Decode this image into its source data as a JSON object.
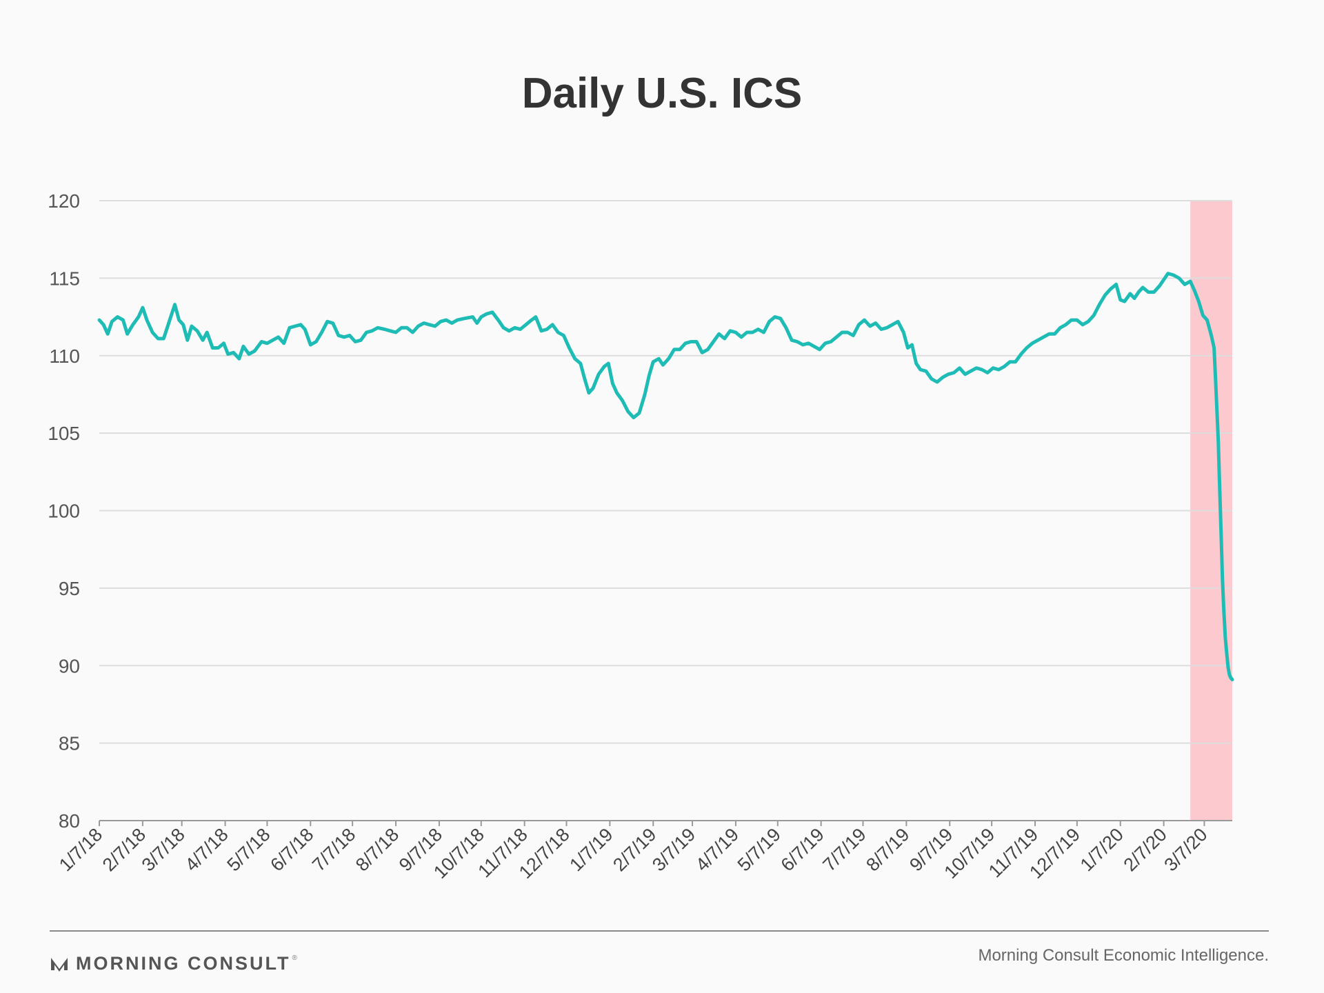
{
  "chart_data": {
    "type": "line",
    "title": "Daily U.S. ICS",
    "xlabel": "",
    "ylabel": "",
    "ylim": [
      80,
      120
    ],
    "yticks": [
      80,
      85,
      90,
      95,
      100,
      105,
      110,
      115,
      120
    ],
    "grid": true,
    "x_start": "2018-01-07",
    "x_end": "2020-03-27",
    "xtick_labels": [
      "1/7/18",
      "2/7/18",
      "3/7/18",
      "4/7/18",
      "5/7/18",
      "6/7/18",
      "7/7/18",
      "8/7/18",
      "9/7/18",
      "10/7/18",
      "11/7/18",
      "12/7/18",
      "1/7/19",
      "2/7/19",
      "3/7/19",
      "4/7/19",
      "5/7/19",
      "6/7/19",
      "7/7/19",
      "8/7/19",
      "9/7/19",
      "10/7/19",
      "11/7/19",
      "12/7/19",
      "1/7/20",
      "2/7/20",
      "3/7/20"
    ],
    "xtick_dates": [
      "2018-01-07",
      "2018-02-07",
      "2018-03-07",
      "2018-04-07",
      "2018-05-07",
      "2018-06-07",
      "2018-07-07",
      "2018-08-07",
      "2018-09-07",
      "2018-10-07",
      "2018-11-07",
      "2018-12-07",
      "2019-01-07",
      "2019-02-07",
      "2019-03-07",
      "2019-04-07",
      "2019-05-07",
      "2019-06-07",
      "2019-07-07",
      "2019-08-07",
      "2019-09-07",
      "2019-10-07",
      "2019-11-07",
      "2019-12-07",
      "2020-01-07",
      "2020-02-07",
      "2020-03-07"
    ],
    "highlight_range": {
      "from": "2020-02-26",
      "to": "2020-03-27",
      "color": "#fcc9cf"
    },
    "series": [
      {
        "color": "#1fbcb6",
        "points": [
          [
            "2018-01-07",
            112.3
          ],
          [
            "2018-01-10",
            112.0
          ],
          [
            "2018-01-13",
            111.4
          ],
          [
            "2018-01-16",
            112.2
          ],
          [
            "2018-01-20",
            112.5
          ],
          [
            "2018-01-24",
            112.3
          ],
          [
            "2018-01-27",
            111.4
          ],
          [
            "2018-01-31",
            112.0
          ],
          [
            "2018-02-04",
            112.5
          ],
          [
            "2018-02-07",
            113.1
          ],
          [
            "2018-02-10",
            112.3
          ],
          [
            "2018-02-14",
            111.5
          ],
          [
            "2018-02-18",
            111.1
          ],
          [
            "2018-02-22",
            111.1
          ],
          [
            "2018-02-26",
            112.2
          ],
          [
            "2018-03-02",
            113.3
          ],
          [
            "2018-03-05",
            112.3
          ],
          [
            "2018-03-08",
            112.0
          ],
          [
            "2018-03-11",
            111.0
          ],
          [
            "2018-03-14",
            111.9
          ],
          [
            "2018-03-18",
            111.6
          ],
          [
            "2018-03-22",
            111.0
          ],
          [
            "2018-03-25",
            111.5
          ],
          [
            "2018-03-29",
            110.5
          ],
          [
            "2018-04-02",
            110.5
          ],
          [
            "2018-04-06",
            110.8
          ],
          [
            "2018-04-09",
            110.1
          ],
          [
            "2018-04-13",
            110.2
          ],
          [
            "2018-04-17",
            109.8
          ],
          [
            "2018-04-20",
            110.6
          ],
          [
            "2018-04-24",
            110.1
          ],
          [
            "2018-04-28",
            110.3
          ],
          [
            "2018-05-03",
            110.9
          ],
          [
            "2018-05-07",
            110.8
          ],
          [
            "2018-05-11",
            111.0
          ],
          [
            "2018-05-15",
            111.2
          ],
          [
            "2018-05-19",
            110.8
          ],
          [
            "2018-05-23",
            111.8
          ],
          [
            "2018-05-27",
            111.9
          ],
          [
            "2018-05-31",
            112.0
          ],
          [
            "2018-06-03",
            111.7
          ],
          [
            "2018-06-07",
            110.7
          ],
          [
            "2018-06-11",
            110.9
          ],
          [
            "2018-06-15",
            111.5
          ],
          [
            "2018-06-19",
            112.2
          ],
          [
            "2018-06-23",
            112.1
          ],
          [
            "2018-06-27",
            111.3
          ],
          [
            "2018-07-01",
            111.2
          ],
          [
            "2018-07-05",
            111.3
          ],
          [
            "2018-07-09",
            110.9
          ],
          [
            "2018-07-13",
            111.0
          ],
          [
            "2018-07-17",
            111.5
          ],
          [
            "2018-07-21",
            111.6
          ],
          [
            "2018-07-25",
            111.8
          ],
          [
            "2018-07-30",
            111.7
          ],
          [
            "2018-08-03",
            111.6
          ],
          [
            "2018-08-07",
            111.5
          ],
          [
            "2018-08-11",
            111.8
          ],
          [
            "2018-08-15",
            111.8
          ],
          [
            "2018-08-19",
            111.5
          ],
          [
            "2018-08-23",
            111.9
          ],
          [
            "2018-08-27",
            112.1
          ],
          [
            "2018-08-31",
            112.0
          ],
          [
            "2018-09-04",
            111.9
          ],
          [
            "2018-09-08",
            112.2
          ],
          [
            "2018-09-12",
            112.3
          ],
          [
            "2018-09-16",
            112.1
          ],
          [
            "2018-09-20",
            112.3
          ],
          [
            "2018-09-25",
            112.4
          ],
          [
            "2018-10-01",
            112.5
          ],
          [
            "2018-10-04",
            112.1
          ],
          [
            "2018-10-07",
            112.5
          ],
          [
            "2018-10-11",
            112.7
          ],
          [
            "2018-10-15",
            112.8
          ],
          [
            "2018-10-20",
            112.2
          ],
          [
            "2018-10-23",
            111.8
          ],
          [
            "2018-10-27",
            111.6
          ],
          [
            "2018-10-31",
            111.8
          ],
          [
            "2018-11-04",
            111.7
          ],
          [
            "2018-11-08",
            112.0
          ],
          [
            "2018-11-12",
            112.3
          ],
          [
            "2018-11-15",
            112.5
          ],
          [
            "2018-11-19",
            111.6
          ],
          [
            "2018-11-23",
            111.7
          ],
          [
            "2018-11-27",
            112.0
          ],
          [
            "2018-12-01",
            111.5
          ],
          [
            "2018-12-05",
            111.3
          ],
          [
            "2018-12-09",
            110.5
          ],
          [
            "2018-12-13",
            109.8
          ],
          [
            "2018-12-17",
            109.5
          ],
          [
            "2018-12-20",
            108.5
          ],
          [
            "2018-12-23",
            107.6
          ],
          [
            "2018-12-26",
            107.9
          ],
          [
            "2018-12-30",
            108.8
          ],
          [
            "2019-01-03",
            109.3
          ],
          [
            "2019-01-06",
            109.5
          ],
          [
            "2019-01-09",
            108.2
          ],
          [
            "2019-01-12",
            107.6
          ],
          [
            "2019-01-16",
            107.1
          ],
          [
            "2019-01-20",
            106.4
          ],
          [
            "2019-01-24",
            106.0
          ],
          [
            "2019-01-28",
            106.3
          ],
          [
            "2019-02-01",
            107.5
          ],
          [
            "2019-02-04",
            108.7
          ],
          [
            "2019-02-07",
            109.6
          ],
          [
            "2019-02-11",
            109.8
          ],
          [
            "2019-02-14",
            109.4
          ],
          [
            "2019-02-18",
            109.8
          ],
          [
            "2019-02-22",
            110.4
          ],
          [
            "2019-02-26",
            110.4
          ],
          [
            "2019-03-02",
            110.8
          ],
          [
            "2019-03-06",
            110.9
          ],
          [
            "2019-03-10",
            110.9
          ],
          [
            "2019-03-14",
            110.2
          ],
          [
            "2019-03-18",
            110.4
          ],
          [
            "2019-03-22",
            110.9
          ],
          [
            "2019-03-26",
            111.4
          ],
          [
            "2019-03-30",
            111.1
          ],
          [
            "2019-04-03",
            111.6
          ],
          [
            "2019-04-07",
            111.5
          ],
          [
            "2019-04-11",
            111.2
          ],
          [
            "2019-04-15",
            111.5
          ],
          [
            "2019-04-19",
            111.5
          ],
          [
            "2019-04-23",
            111.7
          ],
          [
            "2019-04-27",
            111.5
          ],
          [
            "2019-05-01",
            112.2
          ],
          [
            "2019-05-05",
            112.5
          ],
          [
            "2019-05-09",
            112.4
          ],
          [
            "2019-05-13",
            111.8
          ],
          [
            "2019-05-17",
            111.0
          ],
          [
            "2019-05-21",
            110.9
          ],
          [
            "2019-05-25",
            110.7
          ],
          [
            "2019-05-29",
            110.8
          ],
          [
            "2019-06-02",
            110.6
          ],
          [
            "2019-06-06",
            110.4
          ],
          [
            "2019-06-10",
            110.8
          ],
          [
            "2019-06-14",
            110.9
          ],
          [
            "2019-06-18",
            111.2
          ],
          [
            "2019-06-22",
            111.5
          ],
          [
            "2019-06-26",
            111.5
          ],
          [
            "2019-06-30",
            111.3
          ],
          [
            "2019-07-04",
            112.0
          ],
          [
            "2019-07-08",
            112.3
          ],
          [
            "2019-07-12",
            111.9
          ],
          [
            "2019-07-16",
            112.1
          ],
          [
            "2019-07-20",
            111.7
          ],
          [
            "2019-07-24",
            111.8
          ],
          [
            "2019-07-28",
            112.0
          ],
          [
            "2019-08-01",
            112.2
          ],
          [
            "2019-08-05",
            111.5
          ],
          [
            "2019-08-08",
            110.5
          ],
          [
            "2019-08-11",
            110.7
          ],
          [
            "2019-08-14",
            109.5
          ],
          [
            "2019-08-17",
            109.1
          ],
          [
            "2019-08-21",
            109.0
          ],
          [
            "2019-08-25",
            108.5
          ],
          [
            "2019-08-29",
            108.3
          ],
          [
            "2019-09-02",
            108.6
          ],
          [
            "2019-09-06",
            108.8
          ],
          [
            "2019-09-10",
            108.9
          ],
          [
            "2019-09-14",
            109.2
          ],
          [
            "2019-09-18",
            108.8
          ],
          [
            "2019-09-22",
            109.0
          ],
          [
            "2019-09-26",
            109.2
          ],
          [
            "2019-09-30",
            109.1
          ],
          [
            "2019-10-04",
            108.9
          ],
          [
            "2019-10-08",
            109.2
          ],
          [
            "2019-10-12",
            109.1
          ],
          [
            "2019-10-16",
            109.3
          ],
          [
            "2019-10-20",
            109.6
          ],
          [
            "2019-10-24",
            109.6
          ],
          [
            "2019-10-28",
            110.1
          ],
          [
            "2019-11-01",
            110.5
          ],
          [
            "2019-11-05",
            110.8
          ],
          [
            "2019-11-09",
            111.0
          ],
          [
            "2019-11-13",
            111.2
          ],
          [
            "2019-11-17",
            111.4
          ],
          [
            "2019-11-21",
            111.4
          ],
          [
            "2019-11-25",
            111.8
          ],
          [
            "2019-11-29",
            112.0
          ],
          [
            "2019-12-03",
            112.3
          ],
          [
            "2019-12-07",
            112.3
          ],
          [
            "2019-12-11",
            112.0
          ],
          [
            "2019-12-15",
            112.2
          ],
          [
            "2019-12-19",
            112.6
          ],
          [
            "2019-12-23",
            113.3
          ],
          [
            "2019-12-27",
            113.9
          ],
          [
            "2019-12-31",
            114.3
          ],
          [
            "2020-01-04",
            114.6
          ],
          [
            "2020-01-07",
            113.6
          ],
          [
            "2020-01-10",
            113.5
          ],
          [
            "2020-01-14",
            114.0
          ],
          [
            "2020-01-17",
            113.7
          ],
          [
            "2020-01-20",
            114.1
          ],
          [
            "2020-01-23",
            114.4
          ],
          [
            "2020-01-27",
            114.1
          ],
          [
            "2020-01-31",
            114.1
          ],
          [
            "2020-02-04",
            114.5
          ],
          [
            "2020-02-07",
            114.9
          ],
          [
            "2020-02-10",
            115.3
          ],
          [
            "2020-02-14",
            115.2
          ],
          [
            "2020-02-18",
            115.0
          ],
          [
            "2020-02-22",
            114.6
          ],
          [
            "2020-02-26",
            114.8
          ],
          [
            "2020-02-29",
            114.2
          ],
          [
            "2020-03-03",
            113.5
          ],
          [
            "2020-03-06",
            112.6
          ],
          [
            "2020-03-09",
            112.3
          ],
          [
            "2020-03-12",
            111.3
          ],
          [
            "2020-03-14",
            110.5
          ],
          [
            "2020-03-15",
            108.5
          ],
          [
            "2020-03-16",
            106.5
          ],
          [
            "2020-03-17",
            104.5
          ],
          [
            "2020-03-18",
            101.5
          ],
          [
            "2020-03-19",
            98.5
          ],
          [
            "2020-03-20",
            95.5
          ],
          [
            "2020-03-21",
            93.5
          ],
          [
            "2020-03-22",
            91.8
          ],
          [
            "2020-03-23",
            90.8
          ],
          [
            "2020-03-24",
            89.9
          ],
          [
            "2020-03-25",
            89.4
          ],
          [
            "2020-03-26",
            89.2
          ],
          [
            "2020-03-27",
            89.1
          ]
        ]
      }
    ]
  },
  "footer": {
    "brand": "MORNING CONSULT",
    "trademark": "®",
    "source": "Morning Consult Economic Intelligence."
  }
}
